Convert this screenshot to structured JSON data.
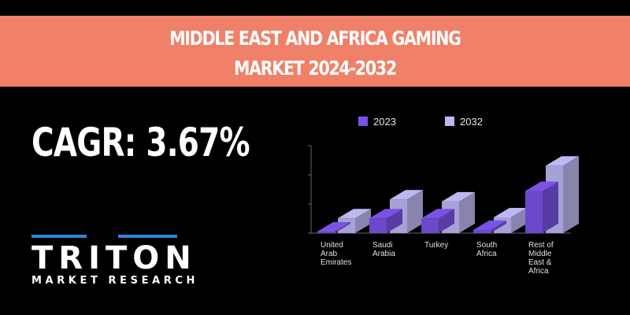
{
  "title": {
    "line1": "MIDDLE EAST AND AFRICA  GAMING",
    "line2": "MARKET 2024-2032"
  },
  "cagr": {
    "label": "CAGR:",
    "value": "3.67%"
  },
  "logo": {
    "name": "TRITON",
    "tagline": "MARKET RESEARCH",
    "accent_color": "#2f86d9"
  },
  "colors": {
    "banner": "#f08068",
    "series_2023": "#7b52e6",
    "series_2032": "#bdb8f2",
    "background": "#000000"
  },
  "chart_data": {
    "type": "bar",
    "categories": [
      "United Arab Emirates",
      "Saudi Arabia",
      "Turkey",
      "South Africa",
      "Rest of Middle East & Africa"
    ],
    "category_labels": [
      [
        "United",
        "Arab",
        "Emirates"
      ],
      [
        "Saudi",
        "Arabia"
      ],
      [
        "Turkey"
      ],
      [
        "South",
        "Africa"
      ],
      [
        "Rest of",
        "Middle",
        "East &",
        "Africa"
      ]
    ],
    "series": [
      {
        "name": "2023",
        "values": [
          1,
          14,
          14,
          3,
          40
        ]
      },
      {
        "name": "2032",
        "values": [
          14,
          32,
          30,
          15,
          64
        ]
      }
    ],
    "ylim": [
      0,
      80
    ],
    "grid": false,
    "legend": "top",
    "style": "3d-column"
  }
}
